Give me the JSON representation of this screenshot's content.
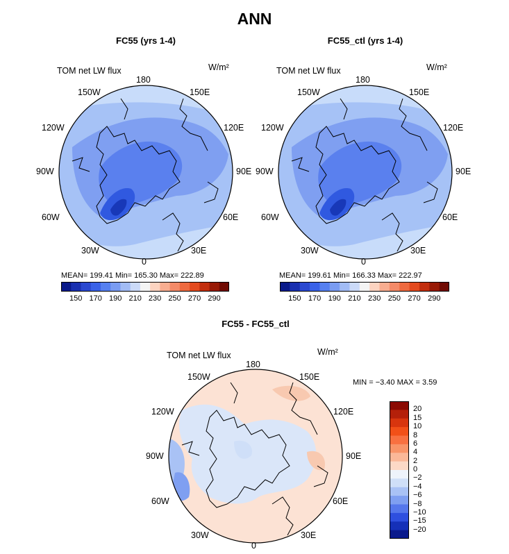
{
  "title": "ANN",
  "units_label": "W/m²",
  "field_label": "TOM net LW flux",
  "lon_labels": {
    "top": "180",
    "bottom": "0",
    "tl": "150W",
    "tr": "150E",
    "ul": "120W",
    "ur": "120E",
    "ml": "90W",
    "mr": "90E",
    "ll": "60W",
    "lr": "60E",
    "bl": "30W",
    "br": "30E"
  },
  "panels": [
    {
      "title": "FC55 (yrs 1-4)",
      "stats": "MEAN= 199.41   Min= 165.30   Max= 222.89"
    },
    {
      "title": "FC55_ctl (yrs 1-4)",
      "stats": "MEAN= 199.61   Min= 166.33   Max= 222.97"
    },
    {
      "title": "FC55 - FC55_ctl",
      "stats": "MIN =  −3.40 MAX =   3.59"
    }
  ],
  "colorbar_horizontal": {
    "tick_labels": [
      "150",
      "170",
      "190",
      "210",
      "230",
      "250",
      "270",
      "290"
    ],
    "colors": [
      "#0a1a8a",
      "#1a30b0",
      "#2a48d0",
      "#3a62e8",
      "#5680f0",
      "#7a9cf2",
      "#a2bcf5",
      "#cbdaf8",
      "#f4f4f4",
      "#fcd3c0",
      "#f8ad90",
      "#f48a68",
      "#ee6a40",
      "#e34a1e",
      "#c22e0e",
      "#981a06",
      "#700a02"
    ]
  },
  "colorbar_vertical": {
    "tick_labels": [
      "20",
      "15",
      "10",
      "8",
      "6",
      "4",
      "2",
      "0",
      "−2",
      "−4",
      "−6",
      "−8",
      "−10",
      "−15",
      "−20"
    ],
    "colors": [
      "#8b0a02",
      "#b4200a",
      "#d8350e",
      "#f25018",
      "#f87040",
      "#f89468",
      "#fab898",
      "#fcd9c6",
      "#eef3fb",
      "#cfdff8",
      "#a9c2f5",
      "#7f9ff1",
      "#5577ec",
      "#2e4fdf",
      "#1530b8",
      "#0a1a8c"
    ]
  }
}
